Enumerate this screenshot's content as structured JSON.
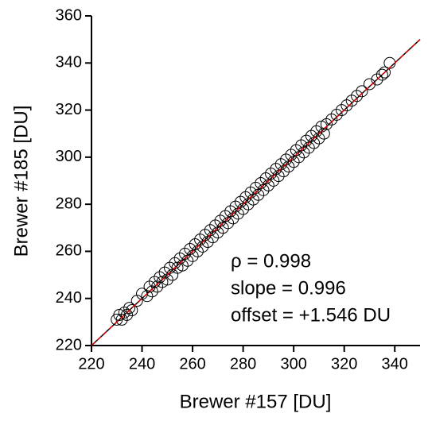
{
  "chart_data": {
    "type": "scatter",
    "x_label": "Brewer #157 [DU]",
    "y_label": "Brewer #185 [DU]",
    "x": [
      230,
      231,
      232,
      233,
      234,
      235,
      236,
      238,
      240,
      242,
      243,
      244,
      245,
      246,
      247,
      248,
      249,
      250,
      251,
      252,
      253,
      254,
      255,
      256,
      257,
      258,
      259,
      260,
      261,
      262,
      263,
      264,
      265,
      266,
      267,
      268,
      269,
      270,
      271,
      272,
      273,
      274,
      275,
      276,
      277,
      278,
      279,
      280,
      281,
      282,
      283,
      284,
      285,
      286,
      287,
      288,
      289,
      290,
      291,
      292,
      293,
      294,
      295,
      296,
      297,
      298,
      299,
      300,
      301,
      302,
      303,
      304,
      305,
      306,
      307,
      308,
      309,
      310,
      311,
      312,
      313,
      315,
      317,
      319,
      321,
      323,
      325,
      327,
      330,
      333,
      335,
      336,
      338
    ],
    "y": [
      231,
      233,
      231,
      234,
      233,
      236,
      235,
      239,
      242,
      241,
      245,
      243,
      247,
      245,
      249,
      247,
      251,
      248,
      253,
      250,
      255,
      253,
      257,
      254,
      259,
      256,
      261,
      258,
      263,
      260,
      265,
      262,
      267,
      264,
      269,
      266,
      271,
      268,
      273,
      270,
      275,
      272,
      277,
      274,
      279,
      276,
      281,
      278,
      283,
      280,
      285,
      282,
      287,
      284,
      289,
      286,
      291,
      288,
      293,
      290,
      295,
      292,
      297,
      294,
      299,
      296,
      301,
      298,
      303,
      300,
      305,
      302,
      307,
      304,
      309,
      306,
      311,
      308,
      313,
      310,
      314,
      316,
      318,
      320,
      322,
      324,
      326,
      328,
      331,
      333,
      335,
      336,
      340
    ],
    "marker_color": "#000000",
    "xlim": [
      220,
      350
    ],
    "ylim": [
      220,
      360
    ],
    "xticks": [
      220,
      240,
      260,
      280,
      300,
      320,
      340
    ],
    "yticks": [
      220,
      240,
      260,
      280,
      300,
      320,
      340,
      360
    ],
    "annotations": [
      "ρ = 0.998",
      "slope = 0.996",
      "offset = +1.546 DU"
    ]
  }
}
